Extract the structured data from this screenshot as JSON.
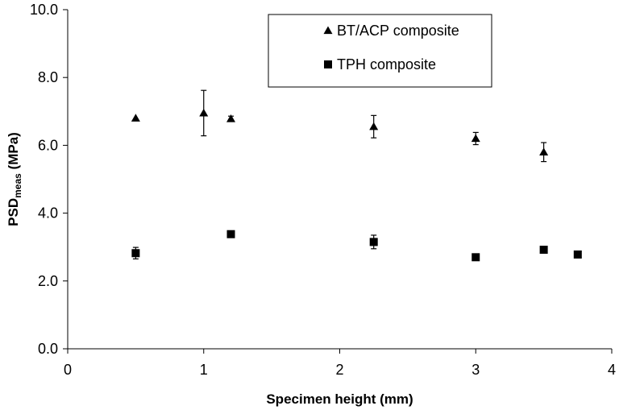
{
  "chart_data": {
    "type": "scatter",
    "xlabel": "Specimen height (mm)",
    "ylabel": {
      "main": "PSD",
      "sub": "meas",
      "unit": " (MPa)"
    },
    "xlim": [
      0,
      4
    ],
    "ylim": [
      0,
      10
    ],
    "x_ticks": [
      "0",
      "1",
      "2",
      "3",
      "4"
    ],
    "y_ticks": [
      "0.0",
      "2.0",
      "4.0",
      "6.0",
      "8.0",
      "10.0"
    ],
    "grid": false,
    "legend_position": "top-right",
    "series": [
      {
        "name": "BT/ACP composite",
        "marker": "triangle",
        "color": "#000000",
        "points": [
          {
            "x": 0.5,
            "y": 6.8,
            "err": 0
          },
          {
            "x": 1.0,
            "y": 6.95,
            "err": 0.67
          },
          {
            "x": 1.2,
            "y": 6.78,
            "err": 0.08
          },
          {
            "x": 2.25,
            "y": 6.55,
            "err": 0.33
          },
          {
            "x": 3.0,
            "y": 6.2,
            "err": 0.18
          },
          {
            "x": 3.5,
            "y": 5.8,
            "err": 0.28
          }
        ]
      },
      {
        "name": "TPH composite",
        "marker": "square",
        "color": "#000000",
        "points": [
          {
            "x": 0.5,
            "y": 2.82,
            "err": 0.17
          },
          {
            "x": 1.2,
            "y": 3.38,
            "err": 0
          },
          {
            "x": 2.25,
            "y": 3.15,
            "err": 0.2
          },
          {
            "x": 3.0,
            "y": 2.7,
            "err": 0
          },
          {
            "x": 3.5,
            "y": 2.92,
            "err": 0
          },
          {
            "x": 3.75,
            "y": 2.78,
            "err": 0
          }
        ]
      }
    ]
  }
}
